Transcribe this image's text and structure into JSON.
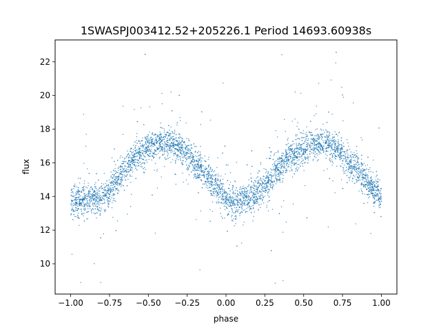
{
  "chart_data": {
    "type": "scatter",
    "title": "1SWASPJ003412.52+205226.1 Period 14693.60938s",
    "xlabel": "phase",
    "ylabel": "flux",
    "xlim": [
      -1.1,
      1.1
    ],
    "ylim": [
      8.2,
      23.3
    ],
    "xticks": [
      -1.0,
      -0.75,
      -0.5,
      -0.25,
      0.0,
      0.25,
      0.5,
      0.75,
      1.0
    ],
    "xtick_labels": [
      "−1.00",
      "−0.75",
      "−0.50",
      "−0.25",
      "0.00",
      "0.25",
      "0.50",
      "0.75",
      "1.00"
    ],
    "yticks": [
      10,
      12,
      14,
      16,
      18,
      20,
      22
    ],
    "ytick_labels": [
      "10",
      "12",
      "14",
      "16",
      "18",
      "20",
      "22"
    ],
    "grid": false,
    "marker_color": "#1f77b4",
    "series": [
      {
        "description_points": "phase-folded light curve; mean flux trend sampled at phase",
        "x": [
          -1.0,
          -0.9,
          -0.8,
          -0.75,
          -0.7,
          -0.6,
          -0.5,
          -0.4,
          -0.35,
          -0.3,
          -0.25,
          -0.2,
          -0.1,
          0.0,
          0.05,
          0.1,
          0.2,
          0.25,
          0.3,
          0.4,
          0.5,
          0.6,
          0.65,
          0.7,
          0.75,
          0.8,
          0.9,
          1.0
        ],
        "y": [
          13.8,
          13.7,
          13.9,
          14.3,
          15.0,
          16.2,
          16.9,
          17.2,
          17.1,
          16.9,
          16.5,
          16.0,
          14.9,
          13.9,
          13.6,
          13.7,
          14.2,
          14.7,
          15.3,
          16.3,
          16.9,
          17.2,
          17.1,
          16.9,
          16.5,
          16.0,
          15.0,
          13.9
        ]
      }
    ]
  }
}
